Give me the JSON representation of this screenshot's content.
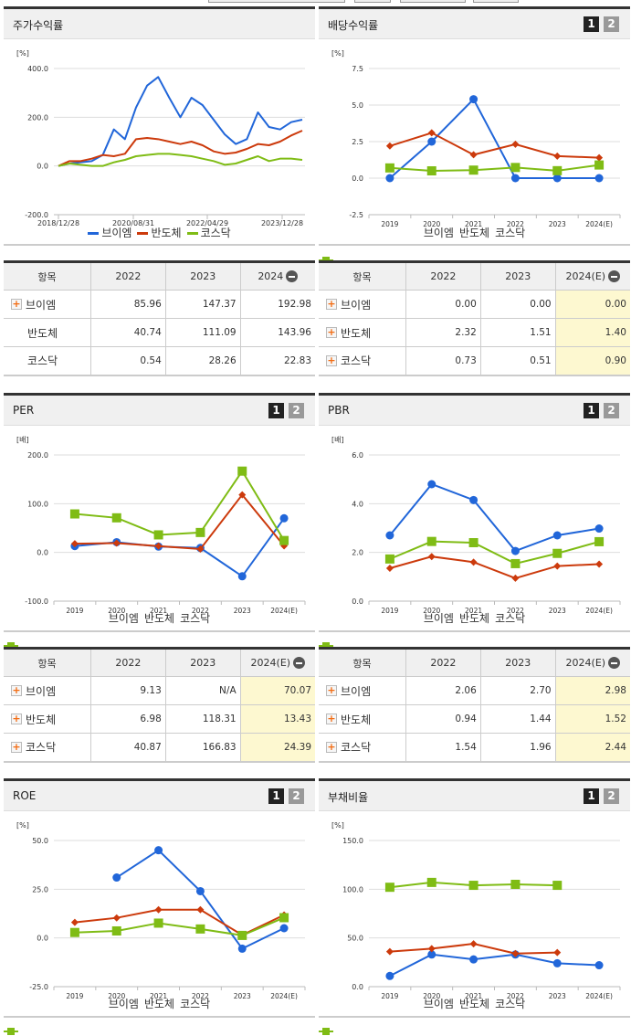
{
  "series_names": [
    "브이엠",
    "반도체",
    "코스닥"
  ],
  "colors": {
    "vm": "#2166d9",
    "semi": "#cc3a0c",
    "kosdaq": "#7fbc15",
    "grid": "#dddddd",
    "estimate_bg": "#fdf8d0"
  },
  "pagers": {
    "p1": "1",
    "p2": "2"
  },
  "stock_return": {
    "title": "주가수익률",
    "unit": "[%]",
    "yticks": [
      "400.0",
      "200.0",
      "0.0",
      "-200.0"
    ],
    "xticks": [
      "2018/12/28",
      "2020/08/31",
      "2022/04/29",
      "2023/12/28"
    ],
    "table": {
      "headers": [
        "항목",
        "2022",
        "2023",
        "2024"
      ],
      "rows": [
        {
          "name": "브이엠",
          "v": [
            "85.96",
            "147.37",
            "192.98"
          ]
        },
        {
          "name": "반도체",
          "v": [
            "40.74",
            "111.09",
            "143.96"
          ]
        },
        {
          "name": "코스닥",
          "v": [
            "0.54",
            "28.26",
            "22.83"
          ]
        }
      ]
    }
  },
  "dividend": {
    "title": "배당수익률",
    "unit": "[%]",
    "yticks": [
      "7.5",
      "5.0",
      "2.5",
      "0.0",
      "-2.5"
    ],
    "xticks": [
      "2019",
      "2020",
      "2021",
      "2022",
      "2023",
      "2024(E)"
    ],
    "table": {
      "headers": [
        "항목",
        "2022",
        "2023",
        "2024(E)"
      ],
      "rows": [
        {
          "name": "브이엠",
          "v": [
            "0.00",
            "0.00",
            "0.00"
          ]
        },
        {
          "name": "반도체",
          "v": [
            "2.32",
            "1.51",
            "1.40"
          ]
        },
        {
          "name": "코스닥",
          "v": [
            "0.73",
            "0.51",
            "0.90"
          ]
        }
      ]
    }
  },
  "per": {
    "title": "PER",
    "unit": "[배]",
    "yticks": [
      "200.0",
      "100.0",
      "0.0",
      "-100.0"
    ],
    "xticks": [
      "2019",
      "2020",
      "2021",
      "2022",
      "2023",
      "2024(E)"
    ],
    "table": {
      "headers": [
        "항목",
        "2022",
        "2023",
        "2024(E)"
      ],
      "rows": [
        {
          "name": "브이엠",
          "v": [
            "9.13",
            "N/A",
            "70.07"
          ]
        },
        {
          "name": "반도체",
          "v": [
            "6.98",
            "118.31",
            "13.43"
          ]
        },
        {
          "name": "코스닥",
          "v": [
            "40.87",
            "166.83",
            "24.39"
          ]
        }
      ]
    }
  },
  "pbr": {
    "title": "PBR",
    "unit": "[배]",
    "yticks": [
      "6.0",
      "4.0",
      "2.0",
      "0.0"
    ],
    "xticks": [
      "2019",
      "2020",
      "2021",
      "2022",
      "2023",
      "2024(E)"
    ],
    "table": {
      "headers": [
        "항목",
        "2022",
        "2023",
        "2024(E)"
      ],
      "rows": [
        {
          "name": "브이엠",
          "v": [
            "2.06",
            "2.70",
            "2.98"
          ]
        },
        {
          "name": "반도체",
          "v": [
            "0.94",
            "1.44",
            "1.52"
          ]
        },
        {
          "name": "코스닥",
          "v": [
            "1.54",
            "1.96",
            "2.44"
          ]
        }
      ]
    }
  },
  "roe": {
    "title": "ROE",
    "unit": "[%]",
    "yticks": [
      "50.0",
      "25.0",
      "0.0",
      "-25.0"
    ],
    "xticks": [
      "2019",
      "2020",
      "2021",
      "2022",
      "2023",
      "2024(E)"
    ]
  },
  "debt": {
    "title": "부채비율",
    "unit": "[%]",
    "yticks": [
      "150.0",
      "100.0",
      "50.0",
      "0.0"
    ],
    "xticks": [
      "2019",
      "2020",
      "2021",
      "2022",
      "2023",
      "2024(E)"
    ]
  },
  "chart_data": [
    {
      "type": "line",
      "title": "주가수익률",
      "ylabel": "[%]",
      "ylim": [
        -200,
        400
      ],
      "x_tick_labels": [
        "2018/12/28",
        "2020/08/31",
        "2022/04/29",
        "2023/12/28"
      ],
      "legend_position": "bottom",
      "grid": true,
      "x": [
        "2018/12",
        "2019/04",
        "2019/08",
        "2019/12",
        "2020/04",
        "2020/08",
        "2020/10",
        "2020/12",
        "2021/03",
        "2021/06",
        "2021/08",
        "2021/11",
        "2022/01",
        "2022/04",
        "2022/06",
        "2022/09",
        "2022/12",
        "2023/03",
        "2023/06",
        "2023/09",
        "2023/12",
        "2024/03",
        "2024/06"
      ],
      "series": [
        {
          "name": "브이엠",
          "values": [
            0,
            10,
            15,
            20,
            45,
            150,
            110,
            240,
            330,
            365,
            280,
            200,
            280,
            250,
            190,
            130,
            90,
            110,
            220,
            160,
            150,
            180,
            190
          ]
        },
        {
          "name": "반도체",
          "values": [
            0,
            20,
            20,
            30,
            45,
            40,
            50,
            110,
            115,
            110,
            100,
            90,
            100,
            85,
            60,
            50,
            55,
            70,
            90,
            85,
            100,
            125,
            145
          ]
        },
        {
          "name": "코스닥",
          "values": [
            0,
            10,
            5,
            0,
            0,
            15,
            25,
            40,
            45,
            50,
            50,
            45,
            40,
            30,
            20,
            5,
            10,
            25,
            40,
            20,
            30,
            30,
            25
          ]
        }
      ]
    },
    {
      "type": "line",
      "title": "배당수익률",
      "ylabel": "[%]",
      "ylim": [
        -2.5,
        7.5
      ],
      "categories": [
        "2019",
        "2020",
        "2021",
        "2022",
        "2023",
        "2024(E)"
      ],
      "legend_position": "bottom",
      "grid": true,
      "series": [
        {
          "name": "브이엠",
          "values": [
            0.0,
            2.5,
            5.4,
            0.0,
            0.0,
            0.0
          ]
        },
        {
          "name": "반도체",
          "values": [
            2.2,
            3.1,
            1.6,
            2.32,
            1.51,
            1.4
          ]
        },
        {
          "name": "코스닥",
          "values": [
            0.7,
            0.5,
            0.55,
            0.73,
            0.51,
            0.9
          ]
        }
      ]
    },
    {
      "type": "line",
      "title": "PER",
      "ylabel": "[배]",
      "ylim": [
        -100,
        200
      ],
      "categories": [
        "2019",
        "2020",
        "2021",
        "2022",
        "2023",
        "2024(E)"
      ],
      "legend_position": "bottom",
      "grid": true,
      "series": [
        {
          "name": "브이엠",
          "values": [
            13,
            21,
            12,
            9.13,
            -49,
            70.07
          ]
        },
        {
          "name": "반도체",
          "values": [
            18,
            19,
            13,
            6.98,
            118.31,
            13.43
          ]
        },
        {
          "name": "코스닥",
          "values": [
            79,
            71,
            36,
            40.87,
            166.83,
            24.39
          ]
        }
      ]
    },
    {
      "type": "line",
      "title": "PBR",
      "ylabel": "[배]",
      "ylim": [
        0,
        6
      ],
      "categories": [
        "2019",
        "2020",
        "2021",
        "2022",
        "2023",
        "2024(E)"
      ],
      "legend_position": "bottom",
      "grid": true,
      "series": [
        {
          "name": "브이엠",
          "values": [
            2.7,
            4.8,
            4.15,
            2.06,
            2.7,
            2.98
          ]
        },
        {
          "name": "반도체",
          "values": [
            1.35,
            1.83,
            1.6,
            0.94,
            1.44,
            1.52
          ]
        },
        {
          "name": "코스닥",
          "values": [
            1.73,
            2.45,
            2.4,
            1.54,
            1.96,
            2.44
          ]
        }
      ]
    },
    {
      "type": "line",
      "title": "ROE",
      "ylabel": "[%]",
      "ylim": [
        -25,
        50
      ],
      "categories": [
        "2019",
        "2020",
        "2021",
        "2022",
        "2023",
        "2024(E)"
      ],
      "legend_position": "bottom",
      "grid": true,
      "series": [
        {
          "name": "브이엠",
          "values": [
            null,
            31,
            45,
            24,
            -5.5,
            5
          ]
        },
        {
          "name": "반도체",
          "values": [
            8,
            10.3,
            14.5,
            14.5,
            1.5,
            11.8
          ]
        },
        {
          "name": "코스닥",
          "values": [
            2.8,
            3.6,
            7.6,
            4.6,
            1.3,
            10.4
          ]
        }
      ]
    },
    {
      "type": "line",
      "title": "부채비율",
      "ylabel": "[%]",
      "ylim": [
        0,
        150
      ],
      "categories": [
        "2019",
        "2020",
        "2021",
        "2022",
        "2023",
        "2024(E)"
      ],
      "legend_position": "bottom",
      "grid": true,
      "series": [
        {
          "name": "브이엠",
          "values": [
            11,
            33,
            28,
            33,
            24,
            22
          ]
        },
        {
          "name": "반도체",
          "values": [
            36,
            39,
            44,
            34,
            35,
            null
          ]
        },
        {
          "name": "코스닥",
          "values": [
            102,
            107,
            104,
            105,
            104,
            null
          ]
        }
      ]
    }
  ]
}
